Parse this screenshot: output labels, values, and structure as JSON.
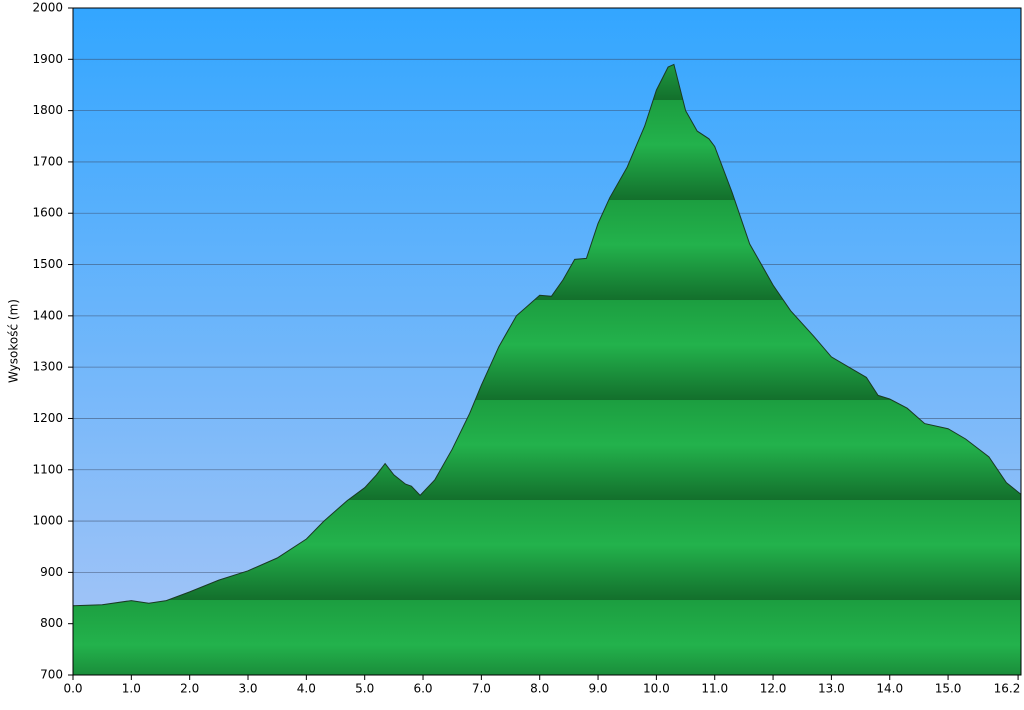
{
  "chart_data": {
    "type": "area",
    "y_label": "Wysokość (m)",
    "x": [
      0,
      0.5,
      1.0,
      1.3,
      1.6,
      2.0,
      2.5,
      3.0,
      3.5,
      4.0,
      4.3,
      4.7,
      5.0,
      5.2,
      5.35,
      5.5,
      5.7,
      5.8,
      5.95,
      6.2,
      6.5,
      6.8,
      7.0,
      7.3,
      7.6,
      7.8,
      8.0,
      8.2,
      8.4,
      8.6,
      8.8,
      9.0,
      9.2,
      9.5,
      9.8,
      10.0,
      10.2,
      10.3,
      10.5,
      10.7,
      10.9,
      11.0,
      11.3,
      11.6,
      11.8,
      12.0,
      12.3,
      12.7,
      13.0,
      13.3,
      13.6,
      13.8,
      14.0,
      14.3,
      14.6,
      15.0,
      15.3,
      15.7,
      16.0,
      16.25
    ],
    "values": [
      835,
      837,
      845,
      840,
      845,
      862,
      885,
      903,
      928,
      965,
      1000,
      1040,
      1065,
      1090,
      1112,
      1090,
      1072,
      1068,
      1050,
      1080,
      1140,
      1210,
      1265,
      1340,
      1400,
      1420,
      1440,
      1438,
      1470,
      1510,
      1512,
      1580,
      1630,
      1690,
      1770,
      1840,
      1885,
      1890,
      1800,
      1760,
      1745,
      1730,
      1640,
      1540,
      1500,
      1460,
      1410,
      1360,
      1320,
      1300,
      1280,
      1245,
      1238,
      1220,
      1190,
      1180,
      1160,
      1125,
      1075,
      1052
    ],
    "color": "#1faa44",
    "xlim": [
      0,
      16.25
    ],
    "ylim": [
      700,
      2000
    ],
    "xticks": [
      {
        "value": 0,
        "label": "0.0"
      },
      {
        "value": 1,
        "label": "1.0"
      },
      {
        "value": 2,
        "label": "2.0"
      },
      {
        "value": 3,
        "label": "3.0"
      },
      {
        "value": 4,
        "label": "4.0"
      },
      {
        "value": 5,
        "label": "5.0"
      },
      {
        "value": 6,
        "label": "6.0"
      },
      {
        "value": 7,
        "label": "7.0"
      },
      {
        "value": 8,
        "label": "8.0"
      },
      {
        "value": 9,
        "label": "9.0"
      },
      {
        "value": 10,
        "label": "10.0"
      },
      {
        "value": 11,
        "label": "11.0"
      },
      {
        "value": 12,
        "label": "12.0"
      },
      {
        "value": 13,
        "label": "13.0"
      },
      {
        "value": 14,
        "label": "14.0"
      },
      {
        "value": 15,
        "label": "15.0"
      },
      16.2
    ],
    "yticks": [
      700,
      800,
      900,
      1000,
      1100,
      1200,
      1300,
      1400,
      1500,
      1600,
      1700,
      1800,
      1900,
      2000
    ],
    "grid": true
  }
}
